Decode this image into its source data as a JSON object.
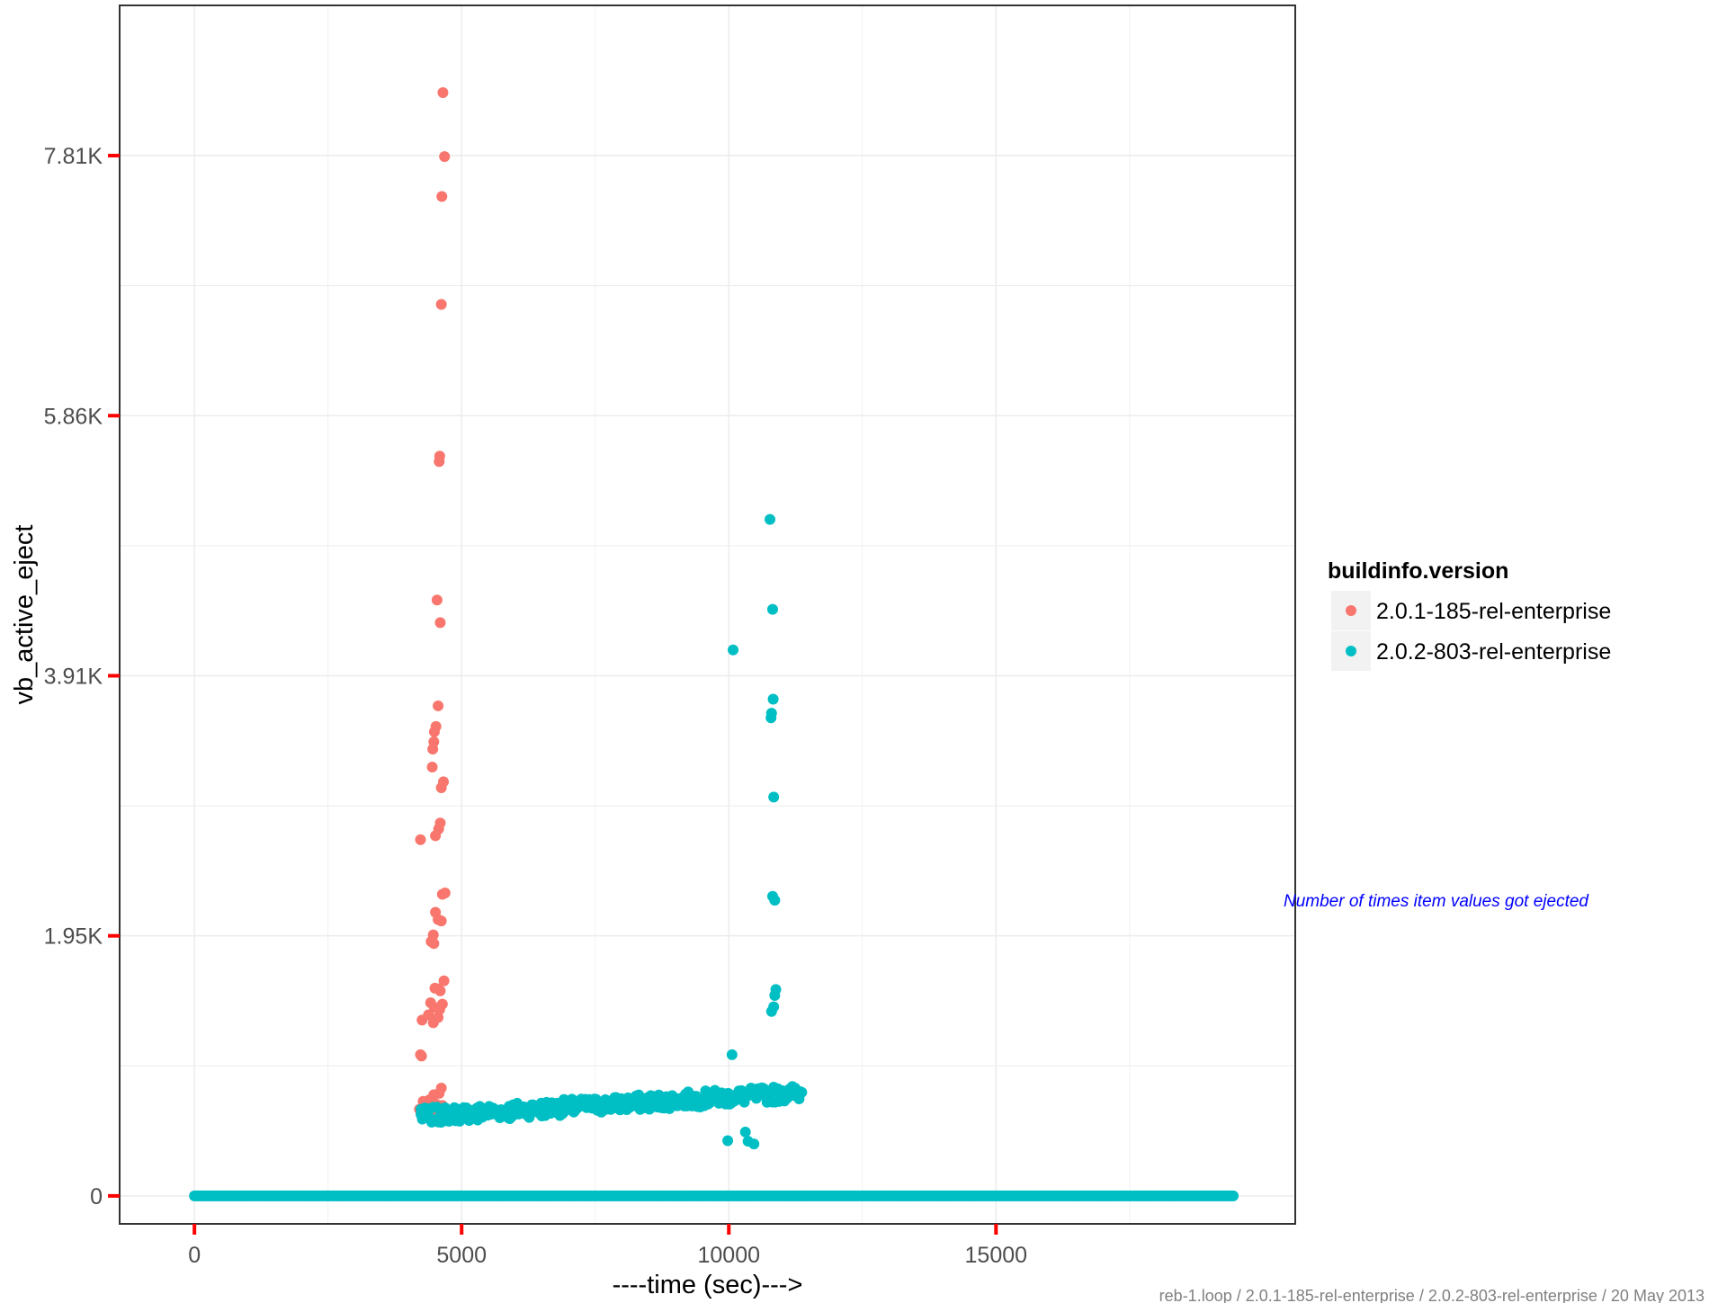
{
  "chart_data": {
    "type": "scatter",
    "xlabel": "----time (sec)--->",
    "ylabel": "vb_active_eject",
    "xlim": [
      -1400,
      20600
    ],
    "ylim": [
      -210,
      8940
    ],
    "x_ticks": [
      {
        "value": 0,
        "label": "0"
      },
      {
        "value": 5000,
        "label": "5000"
      },
      {
        "value": 10000,
        "label": "10000"
      },
      {
        "value": 15000,
        "label": "15000"
      }
    ],
    "y_ticks": [
      {
        "value": 0,
        "label": "0"
      },
      {
        "value": 1953,
        "label": "1.95K"
      },
      {
        "value": 3906,
        "label": "3.91K"
      },
      {
        "value": 5859,
        "label": "5.86K"
      },
      {
        "value": 7812,
        "label": "7.81K"
      }
    ],
    "grid": true,
    "legend": {
      "title": "buildinfo.version",
      "position": "right"
    },
    "annotation": "Number of times item values got ejected",
    "caption": "reb-1.loop / 2.0.1-185-rel-enterprise / 2.0.2-803-rel-enterprise / 20 May 2013",
    "series": [
      {
        "name": "2.0.1-185-rel-enterprise",
        "color": "#f8766d",
        "points": [
          [
            4650,
            8285
          ],
          [
            4680,
            7805
          ],
          [
            4630,
            7505
          ],
          [
            4620,
            6695
          ],
          [
            4590,
            5555
          ],
          [
            4580,
            5515
          ],
          [
            4540,
            4475
          ],
          [
            4600,
            4305
          ],
          [
            4560,
            3680
          ],
          [
            4520,
            3525
          ],
          [
            4490,
            3485
          ],
          [
            4480,
            3410
          ],
          [
            4460,
            3355
          ],
          [
            4450,
            3220
          ],
          [
            4660,
            3110
          ],
          [
            4620,
            3065
          ],
          [
            4600,
            2800
          ],
          [
            4570,
            2755
          ],
          [
            4510,
            2705
          ],
          [
            4230,
            2675
          ],
          [
            4690,
            2275
          ],
          [
            4640,
            2265
          ],
          [
            4510,
            2130
          ],
          [
            4620,
            2065
          ],
          [
            4560,
            2075
          ],
          [
            4470,
            1960
          ],
          [
            4480,
            1895
          ],
          [
            4430,
            1910
          ],
          [
            4670,
            1615
          ],
          [
            4500,
            1560
          ],
          [
            4560,
            1555
          ],
          [
            4600,
            1540
          ],
          [
            4420,
            1450
          ],
          [
            4490,
            1415
          ],
          [
            4590,
            1400
          ],
          [
            4640,
            1440
          ],
          [
            4380,
            1360
          ],
          [
            4470,
            1300
          ],
          [
            4560,
            1340
          ],
          [
            4260,
            1320
          ],
          [
            4230,
            1060
          ],
          [
            4250,
            1050
          ],
          [
            4620,
            810
          ],
          [
            4580,
            770
          ],
          [
            4480,
            760
          ],
          [
            4390,
            720
          ],
          [
            4520,
            690
          ],
          [
            4280,
            710
          ],
          [
            4640,
            680
          ],
          [
            4210,
            650
          ],
          [
            4560,
            640
          ],
          [
            4330,
            615
          ],
          [
            4470,
            600
          ],
          [
            4600,
            590
          ]
        ]
      },
      {
        "name": "2.0.2-803-rel-enterprise",
        "color": "#00bfc4",
        "points": [
          [
            10770,
            5080
          ],
          [
            10820,
            4405
          ],
          [
            10080,
            4100
          ],
          [
            10830,
            3730
          ],
          [
            10800,
            3625
          ],
          [
            10790,
            3590
          ],
          [
            10840,
            2995
          ],
          [
            10820,
            2250
          ],
          [
            10860,
            2220
          ],
          [
            10880,
            1550
          ],
          [
            10860,
            1505
          ],
          [
            10840,
            1420
          ],
          [
            10800,
            1385
          ],
          [
            10060,
            1060
          ],
          [
            9980,
            415
          ],
          [
            10310,
            480
          ],
          [
            10360,
            410
          ],
          [
            10470,
            390
          ],
          [
            4240,
            650
          ],
          [
            4460,
            560
          ],
          [
            4700,
            590
          ],
          [
            5000,
            610
          ],
          [
            5300,
            570
          ],
          [
            5600,
            625
          ],
          [
            5900,
            580
          ],
          [
            6200,
            640
          ],
          [
            6500,
            600
          ],
          [
            6800,
            655
          ],
          [
            7100,
            630
          ],
          [
            7400,
            675
          ],
          [
            7700,
            650
          ],
          [
            8000,
            700
          ],
          [
            8300,
            670
          ],
          [
            8600,
            715
          ],
          [
            8900,
            690
          ],
          [
            9200,
            735
          ],
          [
            9500,
            705
          ],
          [
            9800,
            750
          ],
          [
            10100,
            720
          ],
          [
            10400,
            765
          ],
          [
            10700,
            745
          ],
          [
            11000,
            790
          ],
          [
            11300,
            775
          ]
        ],
        "band": {
          "x_start": 4240,
          "x_end": 11380,
          "y_start": 600,
          "y_end": 775
        },
        "baseline": {
          "x_start": 0,
          "x_end": 19450,
          "y": 0
        }
      }
    ]
  }
}
